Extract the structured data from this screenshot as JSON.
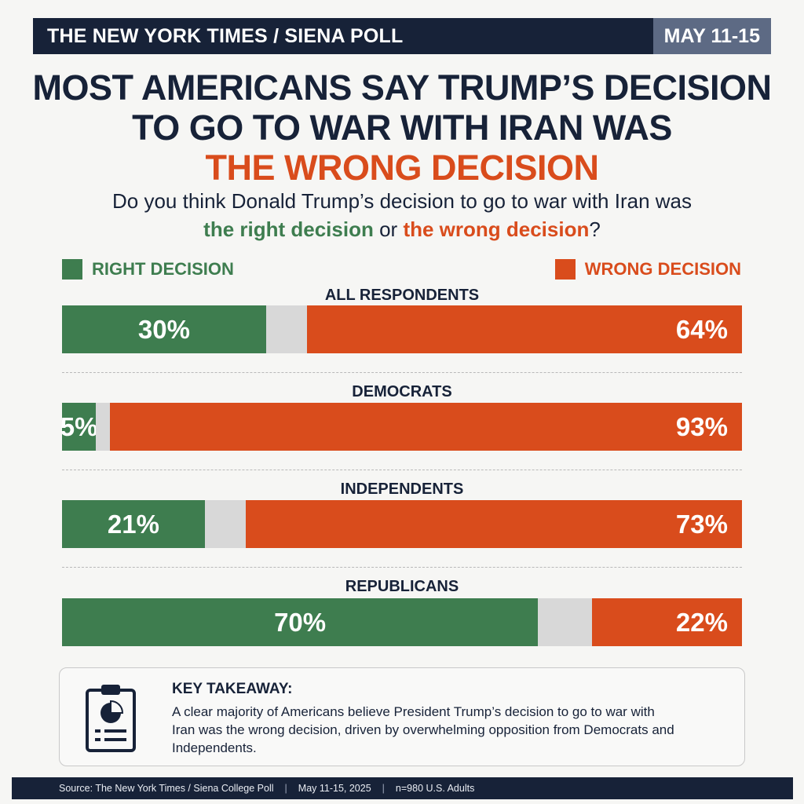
{
  "header": {
    "title": "THE NEW YORK TIMES / SIENA POLL",
    "date": "MAY 11-15"
  },
  "headline": {
    "line1": "MOST AMERICANS SAY TRUMP’S DECISION",
    "line2": "TO GO TO WAR WITH IRAN WAS",
    "line3": "THE WRONG DECISION"
  },
  "question": {
    "part1": "Do you think Donald Trump’s decision to go to war with Iran was",
    "right": "the right decision",
    "or": " or ",
    "wrong": "the wrong decision",
    "end": "?"
  },
  "legend": {
    "right": "RIGHT DECISION",
    "wrong": "WRONG DECISION"
  },
  "colors": {
    "right": "#3e7d4f",
    "wrong": "#d94c1c",
    "unsure": "#d8d8d8",
    "navy": "#172238"
  },
  "chart_data": {
    "type": "bar",
    "stacked": true,
    "orientation": "horizontal",
    "categories": [
      "ALL RESPONDENTS",
      "DEMOCRATS",
      "INDEPENDENTS",
      "REPUBLICANS"
    ],
    "series": [
      {
        "name": "RIGHT DECISION",
        "values": [
          30,
          5,
          21,
          70
        ],
        "labels": [
          "30%",
          "5%",
          "21%",
          "70%"
        ]
      },
      {
        "values": [
          6,
          2,
          6,
          8
        ]
      },
      {
        "name": "WRONG DECISION",
        "values": [
          64,
          93,
          73,
          22
        ],
        "labels": [
          "64%",
          "93%",
          "73%",
          "22%"
        ]
      }
    ],
    "ylim": [
      0,
      100
    ],
    "legend": "top"
  },
  "takeaway": {
    "title": "KEY TAKEAWAY:",
    "body": "A clear majority of Americans believe President Trump’s decision to go to war with Iran was the wrong decision, driven by overwhelming opposition from Democrats and Independents.",
    "icon": "clipboard-chart-icon"
  },
  "footer": {
    "source": "Source: The New York Times / Siena College Poll",
    "dates": "May 11-15, 2025",
    "sample": "n=980 U.S. Adults",
    "separator": "|"
  }
}
